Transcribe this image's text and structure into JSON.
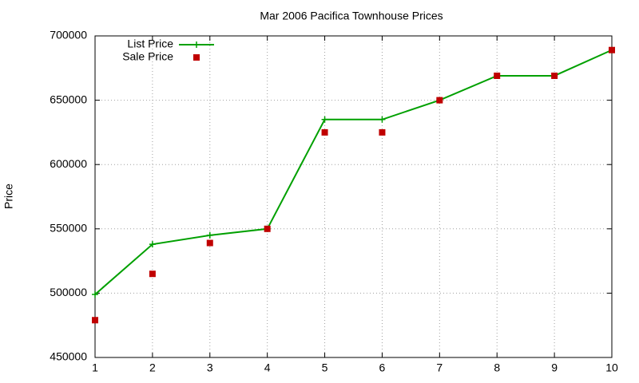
{
  "chart_data": {
    "type": "line",
    "title": "Mar 2006 Pacifica Townhouse Prices",
    "y_label": "Price",
    "x": [
      1,
      2,
      3,
      4,
      5,
      6,
      7,
      8,
      9,
      10
    ],
    "series": [
      {
        "name": "List Price",
        "color": "#00a000",
        "style": "linespoints",
        "values": [
          499000,
          538000,
          545000,
          550000,
          635000,
          635000,
          650000,
          669000,
          669000,
          689000
        ]
      },
      {
        "name": "Sale Price",
        "color": "#c00000",
        "style": "points",
        "values": [
          479000,
          515000,
          539000,
          550000,
          625000,
          625000,
          650000,
          669000,
          669000,
          689000
        ]
      }
    ],
    "xlim": [
      1,
      10
    ],
    "xticks": [
      1,
      2,
      3,
      4,
      5,
      6,
      7,
      8,
      9,
      10
    ],
    "ylim": [
      450000,
      700000
    ],
    "yticks": [
      450000,
      500000,
      550000,
      600000,
      650000,
      700000
    ],
    "grid": true,
    "legend": "top-left"
  }
}
